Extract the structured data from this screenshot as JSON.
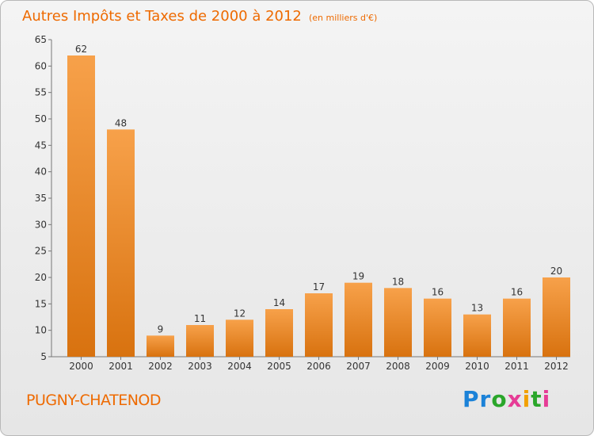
{
  "header": {
    "title": "Autres Impôts et Taxes de 2000 à 2012",
    "unit": "(en milliers d'€)"
  },
  "footer": {
    "commune": "PUGNY-CHATENOD"
  },
  "logo": {
    "letters": [
      "P",
      "r",
      "o",
      "x",
      "i",
      "t",
      "i"
    ],
    "colors": [
      "#1b82d8",
      "#1b82d8",
      "#2aa62a",
      "#e63c96",
      "#f2a000",
      "#2aa62a",
      "#e63c96"
    ]
  },
  "colors": {
    "bar_top": "#f7a14a",
    "bar_bottom": "#d8720f",
    "title": "#ee6a00"
  },
  "chart_data": {
    "type": "bar",
    "title": "Autres Impôts et Taxes de 2000 à 2012",
    "subtitle": "(en milliers d'€)",
    "categories": [
      "2000",
      "2001",
      "2002",
      "2003",
      "2004",
      "2005",
      "2006",
      "2007",
      "2008",
      "2009",
      "2010",
      "2011",
      "2012"
    ],
    "values": [
      62,
      48,
      9,
      11,
      12,
      14,
      17,
      19,
      18,
      16,
      13,
      16,
      20
    ],
    "ylim": [
      5,
      65
    ],
    "yticks": [
      5,
      10,
      15,
      20,
      25,
      30,
      35,
      40,
      45,
      50,
      55,
      60,
      65
    ],
    "grid": false,
    "legend": "none"
  }
}
